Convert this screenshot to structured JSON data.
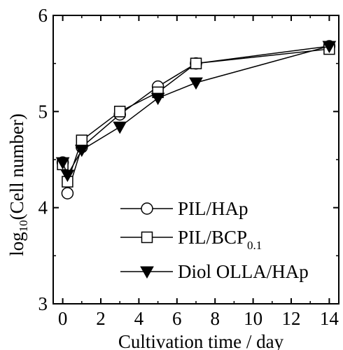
{
  "chart_data": {
    "type": "line",
    "xlabel": "Cultivation time / day",
    "ylabel_main": "log",
    "ylabel_sub": "10",
    "ylabel_rest": "(Cell number)",
    "xlim": [
      -0.5,
      14.5
    ],
    "ylim": [
      3,
      6
    ],
    "x_ticks": [
      0,
      2,
      4,
      6,
      8,
      10,
      12,
      14
    ],
    "y_ticks": [
      3,
      4,
      5,
      6
    ],
    "grid": false,
    "legend_position": "lower-right",
    "series": [
      {
        "name": "PIL/HAp",
        "name_sub": "",
        "marker": "circle-open",
        "x": [
          0,
          0.25,
          1,
          3,
          5,
          7,
          14
        ],
        "y": [
          4.47,
          4.15,
          4.63,
          4.97,
          5.26,
          5.5,
          5.68
        ]
      },
      {
        "name": "PIL/BCP",
        "name_sub": "0.1",
        "marker": "square-open",
        "x": [
          0,
          0.25,
          1,
          3,
          5,
          7,
          14
        ],
        "y": [
          4.45,
          4.27,
          4.7,
          5.0,
          5.2,
          5.5,
          5.65
        ]
      },
      {
        "name": "Diol OLLA/HAp",
        "name_sub": "",
        "marker": "triangle-down-filled",
        "x": [
          0,
          0.25,
          1,
          3,
          5,
          7,
          14
        ],
        "y": [
          4.47,
          4.34,
          4.6,
          4.84,
          5.14,
          5.3,
          5.68
        ]
      }
    ]
  }
}
